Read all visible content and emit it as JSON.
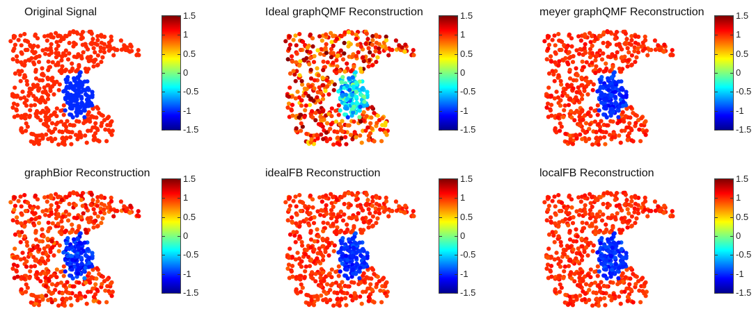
{
  "chart_data": [
    {
      "type": "scatter",
      "title": "Original Signal",
      "colorbar": {
        "clim": [
          -1.5,
          1.5
        ],
        "ticks": [
          "1.5",
          "1",
          "0.5",
          "0",
          "-0.5",
          "-1",
          "-1.5"
        ],
        "colormap": "jet"
      },
      "signal": {
        "outside": 1.0,
        "region": -1.0
      },
      "noise": 0.0,
      "edges_color": "#8c8c8c"
    },
    {
      "type": "scatter",
      "title": "Ideal graphQMF Reconstruction",
      "colorbar": {
        "clim": [
          -1.5,
          1.5
        ],
        "ticks": [
          "1.5",
          "1",
          "0.5",
          "0",
          "-0.5",
          "-1",
          "-1.5"
        ],
        "colormap": "jet"
      },
      "signal": {
        "outside": 1.0,
        "region": -0.5
      },
      "noise": 0.55,
      "edges_color": "#8c8c8c"
    },
    {
      "type": "scatter",
      "title": "meyer graphQMF Reconstruction",
      "colorbar": {
        "clim": [
          -1.5,
          1.5
        ],
        "ticks": [
          "1.5",
          "1",
          "0.5",
          "0",
          "-0.5",
          "-1",
          "-1.5"
        ],
        "colormap": "jet"
      },
      "signal": {
        "outside": 1.0,
        "region": -1.0
      },
      "noise": 0.15,
      "edges_color": "#8c8c8c"
    },
    {
      "type": "scatter",
      "title": "graphBior Reconstruction",
      "colorbar": {
        "clim": [
          -1.5,
          1.5
        ],
        "ticks": [
          "1.5",
          "1",
          "0.5",
          "0",
          "-0.5",
          "-1",
          "-1.5"
        ],
        "colormap": "jet"
      },
      "signal": {
        "outside": 1.0,
        "region": -1.0
      },
      "noise": 0.25,
      "edges_color": "#8c8c8c"
    },
    {
      "type": "scatter",
      "title": "idealFB Reconstruction",
      "colorbar": {
        "clim": [
          -1.5,
          1.5
        ],
        "ticks": [
          "1.5",
          "1",
          "0.5",
          "0",
          "-0.5",
          "-1",
          "-1.5"
        ],
        "colormap": "jet"
      },
      "signal": {
        "outside": 1.0,
        "region": -1.0
      },
      "noise": 0.15,
      "edges_color": "#8c8c8c"
    },
    {
      "type": "scatter",
      "title": "localFB Reconstruction",
      "colorbar": {
        "clim": [
          -1.5,
          1.5
        ],
        "ticks": [
          "1.5",
          "1",
          "0.5",
          "0",
          "-0.5",
          "-1",
          "-1.5"
        ],
        "colormap": "jet"
      },
      "signal": {
        "outside": 1.0,
        "region": -1.0
      },
      "noise": 0.15,
      "edges_color": "#8c8c8c"
    }
  ]
}
